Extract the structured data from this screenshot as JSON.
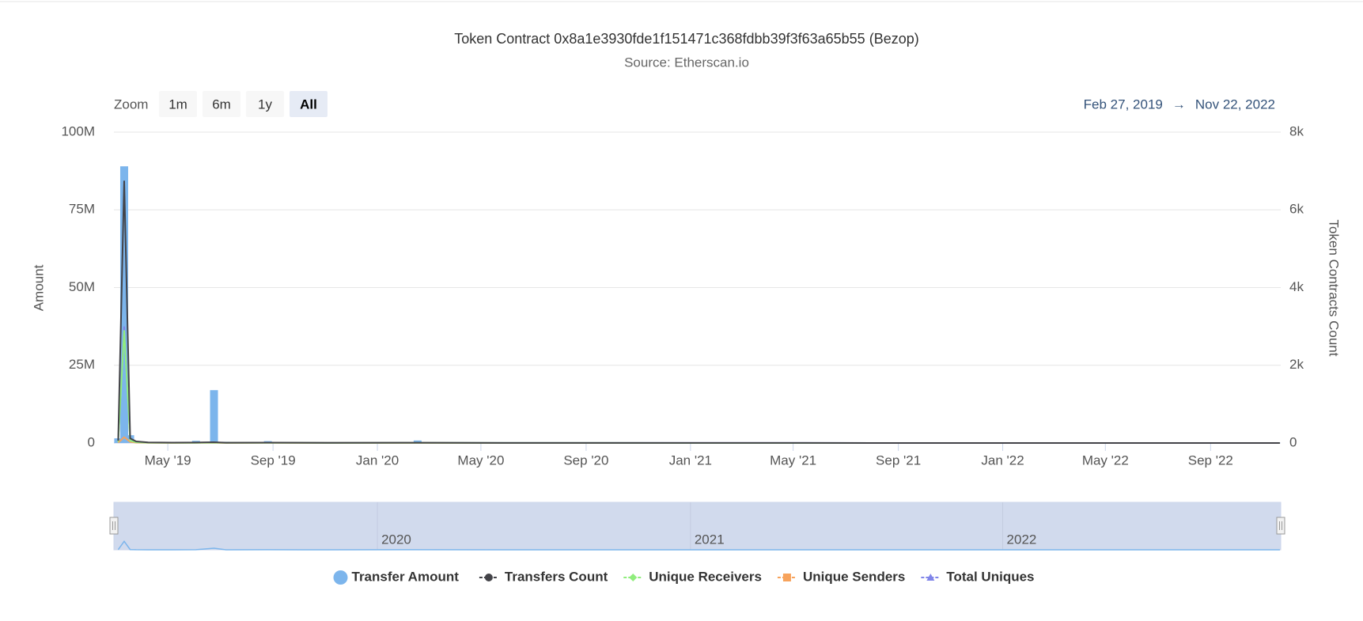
{
  "chart_data": {
    "type": "stock",
    "title": "Token Contract 0x8a1e3930fde1f151471c368fdbb39f3f63a65b55 (Bezop)",
    "subtitle": "Source: Etherscan.io",
    "range_selector": {
      "label": "Zoom",
      "buttons": [
        "1m",
        "6m",
        "1y",
        "All"
      ],
      "selected": 3,
      "from": "Feb 27, 2019",
      "arrow": "→",
      "to": "Nov 22, 2022"
    },
    "y_label": "Amount",
    "y2_label": "Token Contracts Count",
    "xlim": [
      "2019-02-27",
      "2022-11-22"
    ],
    "xticks": [
      {
        "value": "2019-05-01",
        "label": "May '19"
      },
      {
        "value": "2019-09-01",
        "label": "Sep '19"
      },
      {
        "value": "2020-01-01",
        "label": "Jan '20"
      },
      {
        "value": "2020-05-01",
        "label": "May '20"
      },
      {
        "value": "2020-09-01",
        "label": "Sep '20"
      },
      {
        "value": "2021-01-01",
        "label": "Jan '21"
      },
      {
        "value": "2021-05-01",
        "label": "May '21"
      },
      {
        "value": "2021-09-01",
        "label": "Sep '21"
      },
      {
        "value": "2022-01-01",
        "label": "Jan '22"
      },
      {
        "value": "2022-05-01",
        "label": "May '22"
      },
      {
        "value": "2022-09-01",
        "label": "Sep '22"
      }
    ],
    "navigator_ticks": [
      {
        "value": "2020-01-01",
        "label": "2020"
      },
      {
        "value": "2021-01-01",
        "label": "2021"
      },
      {
        "value": "2022-01-01",
        "label": "2022"
      }
    ],
    "ylim": [
      0,
      100000000
    ],
    "yticks": [
      0,
      {
        "value": 25000000,
        "label": "25M"
      },
      {
        "value": 50000000,
        "label": "50M"
      },
      {
        "value": 75000000,
        "label": "75M"
      },
      {
        "value": 100000000,
        "label": "100M"
      }
    ],
    "y2lim": [
      0,
      8000
    ],
    "y2ticks": [
      0,
      {
        "value": 2000,
        "label": "2k"
      },
      {
        "value": 4000,
        "label": "4k"
      },
      {
        "value": 6000,
        "label": "6k"
      },
      {
        "value": 8000,
        "label": "8k"
      }
    ],
    "grid": true,
    "x": [
      "2019-03-04",
      "2019-03-11",
      "2019-03-18",
      "2019-03-25",
      "2019-04-08",
      "2019-05-06",
      "2019-06-03",
      "2019-06-24",
      "2019-07-08",
      "2019-08-26",
      "2019-11-04",
      "2020-02-17",
      "2020-06-01",
      "2021-01-04",
      "2021-08-02",
      "2022-03-07",
      "2022-11-21"
    ],
    "series": [
      {
        "name": "Transfer Amount",
        "color": "#7cb5ec",
        "kind": "column",
        "marker": "circle",
        "values": [
          1500000,
          89000000,
          2500000,
          600000,
          150000,
          80000,
          700000,
          17000000,
          400000,
          600000,
          100000,
          800000,
          50000,
          20000,
          10000,
          5000,
          2000
        ]
      },
      {
        "name": "Transfers Count",
        "color": "#434348",
        "kind": "line",
        "marker": "circle",
        "axis": "y2",
        "values": [
          60,
          6750,
          120,
          40,
          15,
          10,
          12,
          20,
          8,
          10,
          5,
          8,
          3,
          2,
          1,
          1,
          1
        ]
      },
      {
        "name": "Unique Receivers",
        "color": "#90ed7d",
        "kind": "line",
        "marker": "diamond",
        "axis": "y2",
        "values": [
          30,
          2900,
          60,
          20,
          8,
          5,
          6,
          10,
          4,
          5,
          3,
          4,
          2,
          1,
          1,
          1,
          1
        ]
      },
      {
        "name": "Unique Senders",
        "color": "#f7a35c",
        "kind": "line",
        "marker": "square",
        "axis": "y2",
        "values": [
          10,
          150,
          30,
          10,
          5,
          3,
          4,
          6,
          3,
          4,
          2,
          3,
          1,
          1,
          1,
          1,
          1
        ]
      },
      {
        "name": "Total Uniques",
        "color": "#8085e9",
        "kind": "line",
        "marker": "triangle",
        "axis": "y2",
        "values": [
          35,
          3000,
          70,
          25,
          10,
          6,
          8,
          12,
          5,
          7,
          4,
          5,
          2,
          2,
          1,
          1,
          1
        ]
      }
    ]
  }
}
